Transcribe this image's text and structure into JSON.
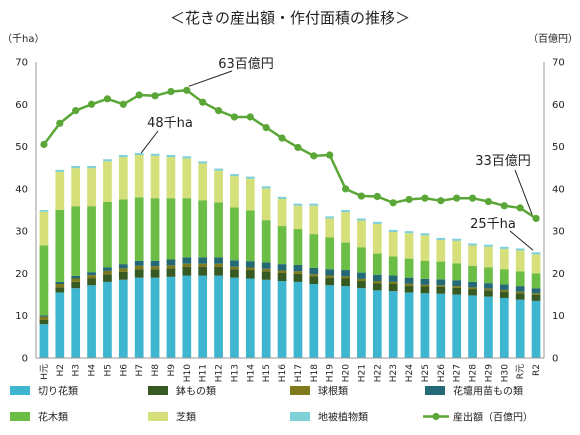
{
  "chart_data": {
    "type": "bar",
    "title": "＜花きの産出額・作付面積の推移＞",
    "ylabel_left": "（千ha）",
    "ylabel_right": "（百億円）",
    "ylim": [
      0,
      70
    ],
    "yticks": [
      0,
      10,
      20,
      30,
      40,
      50,
      60,
      70
    ],
    "grid": false,
    "legend_position": "bottom",
    "categories": [
      "H元",
      "H2",
      "H3",
      "H4",
      "H5",
      "H6",
      "H7",
      "H8",
      "H9",
      "H10",
      "H11",
      "H12",
      "H13",
      "H14",
      "H15",
      "H16",
      "H17",
      "H18",
      "H19",
      "H20",
      "H21",
      "H22",
      "H23",
      "H24",
      "H25",
      "H26",
      "H27",
      "H28",
      "H29",
      "H30",
      "R元",
      "R2"
    ],
    "series": [
      {
        "name": "切り花類",
        "type": "bar",
        "color": "#3fb6cf",
        "values": [
          8.0,
          15.5,
          16.5,
          17.2,
          18.0,
          18.5,
          19.0,
          19.0,
          19.2,
          19.5,
          19.5,
          19.5,
          19.0,
          18.8,
          18.5,
          18.2,
          18.0,
          17.5,
          17.2,
          17.0,
          16.5,
          16.0,
          15.8,
          15.5,
          15.3,
          15.2,
          15.0,
          14.8,
          14.5,
          14.2,
          13.8,
          13.5
        ]
      },
      {
        "name": "鉢もの類",
        "type": "bar",
        "color": "#375a23",
        "values": [
          1.0,
          1.2,
          1.5,
          1.6,
          1.8,
          1.9,
          2.0,
          2.0,
          2.0,
          2.1,
          2.1,
          2.1,
          2.0,
          2.0,
          2.0,
          1.9,
          1.9,
          1.8,
          1.8,
          1.8,
          1.7,
          1.7,
          1.7,
          1.6,
          1.6,
          1.6,
          1.6,
          1.5,
          1.5,
          1.5,
          1.5,
          1.4
        ]
      },
      {
        "name": "球根類",
        "type": "bar",
        "color": "#7f7a1c",
        "values": [
          0.8,
          0.8,
          0.8,
          0.8,
          0.8,
          0.8,
          0.8,
          0.7,
          0.7,
          0.7,
          0.7,
          0.7,
          0.6,
          0.6,
          0.6,
          0.6,
          0.6,
          0.5,
          0.5,
          0.5,
          0.5,
          0.5,
          0.5,
          0.5,
          0.4,
          0.4,
          0.4,
          0.4,
          0.4,
          0.4,
          0.4,
          0.4
        ]
      },
      {
        "name": "花壇用苗もの類",
        "type": "bar",
        "color": "#246a76",
        "values": [
          0.3,
          0.5,
          0.6,
          0.7,
          0.8,
          1.0,
          1.2,
          1.3,
          1.4,
          1.5,
          1.5,
          1.5,
          1.5,
          1.5,
          1.5,
          1.5,
          1.5,
          1.5,
          1.5,
          1.5,
          1.5,
          1.5,
          1.5,
          1.4,
          1.4,
          1.4,
          1.4,
          1.3,
          1.3,
          1.3,
          1.3,
          1.2
        ]
      },
      {
        "name": "花木類",
        "type": "bar",
        "color": "#6cbd45",
        "values": [
          16.5,
          17.0,
          16.5,
          15.6,
          15.5,
          15.3,
          15.0,
          14.8,
          14.5,
          14.0,
          13.5,
          13.0,
          12.5,
          12.0,
          10.0,
          9.0,
          8.5,
          8.0,
          7.5,
          6.5,
          6.0,
          5.0,
          4.5,
          4.5,
          4.3,
          4.2,
          4.0,
          3.8,
          3.7,
          3.6,
          3.5,
          3.5
        ]
      },
      {
        "name": "芝類",
        "type": "bar",
        "color": "#d5e07a",
        "values": [
          8.0,
          9.0,
          9.0,
          9.0,
          9.6,
          10.0,
          10.0,
          10.0,
          9.7,
          9.4,
          8.7,
          7.5,
          7.4,
          7.5,
          7.5,
          6.4,
          5.5,
          6.7,
          4.5,
          7.2,
          6.3,
          7.0,
          5.8,
          6.0,
          6.0,
          5.1,
          5.3,
          4.8,
          4.9,
          4.8,
          4.9,
          4.5
        ]
      },
      {
        "name": "地被植物類",
        "type": "bar",
        "color": "#7fd0d7",
        "values": [
          0.4,
          0.5,
          0.5,
          0.5,
          0.5,
          0.5,
          0.5,
          0.5,
          0.5,
          0.5,
          0.5,
          0.5,
          0.5,
          0.5,
          0.5,
          0.5,
          0.5,
          0.5,
          0.5,
          0.5,
          0.5,
          0.5,
          0.5,
          0.5,
          0.5,
          0.5,
          0.5,
          0.5,
          0.5,
          0.5,
          0.5,
          0.5
        ]
      },
      {
        "name": "産出額（百億円）",
        "type": "line",
        "color": "#5aa637",
        "values": [
          50.5,
          55.5,
          58.5,
          60.0,
          61.3,
          60.0,
          62.2,
          62.0,
          63.0,
          63.3,
          60.5,
          58.5,
          57.0,
          57.0,
          54.5,
          52.0,
          49.8,
          47.8,
          48.0,
          40.0,
          38.3,
          38.2,
          36.7,
          37.5,
          37.8,
          37.2,
          37.8,
          37.8,
          37.0,
          36.0,
          35.5,
          33.0
        ]
      }
    ],
    "annotations": [
      "48千ha",
      "63百億円",
      "33百億円",
      "25千ha"
    ]
  }
}
